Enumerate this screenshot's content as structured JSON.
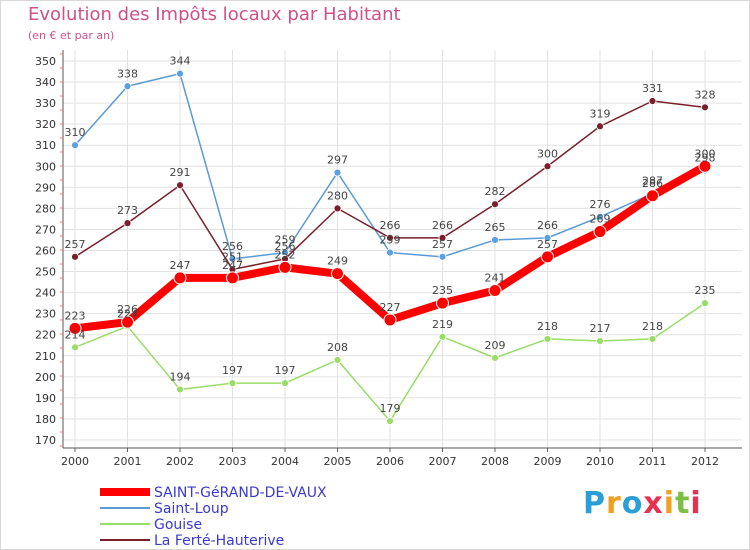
{
  "title": "Evolution des Impôts locaux par Habitant",
  "subtitle": "(en € et par an)",
  "brand": "Proxiti",
  "chart_data": {
    "type": "line",
    "x": [
      "2000",
      "2001",
      "2002",
      "2003",
      "2004",
      "2005",
      "2006",
      "2007",
      "2008",
      "2009",
      "2010",
      "2011",
      "2012"
    ],
    "ylim": [
      170,
      350
    ],
    "yticks": [
      170,
      180,
      190,
      200,
      210,
      220,
      230,
      240,
      250,
      260,
      270,
      280,
      290,
      300,
      310,
      320,
      330,
      340,
      350
    ],
    "grid": true,
    "legend_position": "bottom-left",
    "series": [
      {
        "name": "SAINT-GéRAND-DE-VAUX",
        "color": "#ff0000",
        "values": [
          223,
          226,
          247,
          247,
          252,
          249,
          227,
          235,
          241,
          257,
          269,
          286,
          300
        ]
      },
      {
        "name": "Saint-Loup",
        "color": "#5b9bd5",
        "values": [
          310,
          338,
          344,
          256,
          259,
          297,
          259,
          257,
          265,
          266,
          276,
          287,
          298
        ]
      },
      {
        "name": "Gouise",
        "color": "#99dd66",
        "values": [
          214,
          224,
          194,
          197,
          197,
          208,
          179,
          219,
          209,
          218,
          217,
          218,
          235
        ]
      },
      {
        "name": "La Ferté-Hauterive",
        "color": "#7a1f2b",
        "values": [
          257,
          273,
          291,
          251,
          256,
          280,
          266,
          266,
          282,
          300,
          319,
          331,
          328
        ]
      }
    ],
    "value_labels": {
      "SAINT-GéRAND-DE-VAUX": [
        "223",
        "226",
        "247",
        "247",
        "252",
        "249",
        "227",
        "235",
        "241",
        "257",
        "269",
        "286",
        "300"
      ],
      "Saint-Loup": [
        "310",
        "338",
        "344",
        "256",
        "259",
        "297",
        "259",
        "257",
        "265",
        "266",
        "276",
        "287",
        "298"
      ],
      "Gouise": [
        "214",
        "224",
        "194",
        "197",
        "197",
        "208",
        "179",
        "219",
        "209",
        "218",
        "217",
        "218",
        "235"
      ],
      "La Ferté-Hauterive": [
        "257",
        "273",
        "291",
        "251",
        "256",
        "280",
        "266",
        "266",
        "282",
        "300",
        "319",
        "331",
        "328"
      ]
    }
  }
}
